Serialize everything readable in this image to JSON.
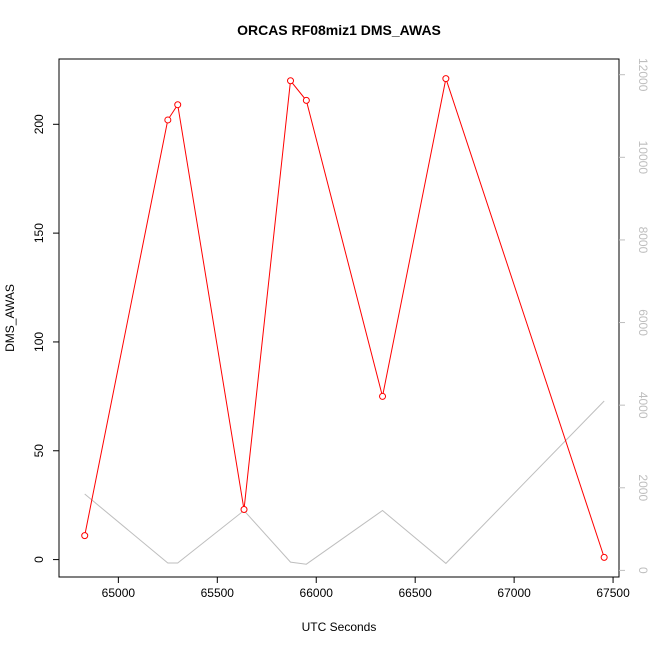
{
  "chart_data": {
    "type": "line",
    "title": "ORCAS RF08miz1 DMS_AWAS",
    "xlabel": "UTC Seconds",
    "ylabel": "DMS_AWAS",
    "y2label": "",
    "xlim": [
      64700,
      67530
    ],
    "ylim": [
      -8,
      230
    ],
    "y2lim": [
      -160,
      12380
    ],
    "x_ticks": [
      65000,
      65500,
      66000,
      66500,
      67000,
      67500
    ],
    "y_ticks": [
      0,
      50,
      100,
      150,
      200
    ],
    "y2_ticks": [
      0,
      2000,
      4000,
      6000,
      8000,
      10000,
      12000
    ],
    "grid": false,
    "legend": "none",
    "series": [
      {
        "axis": "left",
        "color": "#ff0000",
        "markers": "open-circle",
        "x": [
          64830,
          65250,
          65300,
          65635,
          65870,
          65950,
          66335,
          66655,
          67455
        ],
        "y": [
          11,
          202,
          209,
          23,
          220,
          211,
          75,
          221,
          1
        ]
      },
      {
        "axis": "right",
        "color": "#bebebe",
        "markers": "none",
        "x": [
          64830,
          65250,
          65300,
          65635,
          65870,
          65950,
          66335,
          66655,
          67455
        ],
        "y": [
          1850,
          180,
          180,
          1450,
          200,
          150,
          1450,
          170,
          4100
        ]
      }
    ]
  }
}
